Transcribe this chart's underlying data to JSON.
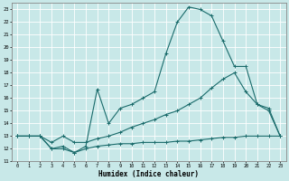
{
  "xlabel": "Humidex (Indice chaleur)",
  "xlim": [
    -0.5,
    23.5
  ],
  "ylim": [
    11,
    23.5
  ],
  "yticks": [
    11,
    12,
    13,
    14,
    15,
    16,
    17,
    18,
    19,
    20,
    21,
    22,
    23
  ],
  "xticks": [
    0,
    1,
    2,
    3,
    4,
    5,
    6,
    7,
    8,
    9,
    10,
    11,
    12,
    13,
    14,
    15,
    16,
    17,
    18,
    19,
    20,
    21,
    22,
    23
  ],
  "bg_color": "#c8e8e8",
  "line_color": "#1a6b6b",
  "grid_color": "#ffffff",
  "line1_x": [
    0,
    1,
    2,
    3,
    4,
    5,
    6,
    7,
    8,
    9,
    10,
    11,
    12,
    13,
    14,
    15,
    16,
    17,
    18,
    19,
    20,
    21,
    22,
    23
  ],
  "line1_y": [
    13.0,
    13.0,
    13.0,
    12.0,
    12.2,
    11.7,
    12.2,
    16.7,
    14.0,
    15.2,
    15.5,
    16.0,
    16.5,
    19.5,
    22.0,
    23.2,
    23.0,
    22.5,
    20.5,
    18.5,
    18.5,
    15.5,
    15.0,
    13.0
  ],
  "line2_x": [
    0,
    1,
    2,
    3,
    4,
    5,
    6,
    7,
    8,
    9,
    10,
    11,
    12,
    13,
    14,
    15,
    16,
    17,
    18,
    19,
    20,
    21,
    22,
    23
  ],
  "line2_y": [
    13.0,
    13.0,
    13.0,
    12.5,
    13.0,
    12.5,
    12.5,
    12.8,
    13.0,
    13.3,
    13.7,
    14.0,
    14.3,
    14.7,
    15.0,
    15.5,
    16.0,
    16.8,
    17.5,
    18.0,
    16.5,
    15.5,
    15.2,
    13.0
  ],
  "line3_x": [
    0,
    1,
    2,
    3,
    4,
    5,
    6,
    7,
    8,
    9,
    10,
    11,
    12,
    13,
    14,
    15,
    16,
    17,
    18,
    19,
    20,
    21,
    22,
    23
  ],
  "line3_y": [
    13.0,
    13.0,
    13.0,
    12.0,
    12.0,
    11.7,
    12.0,
    12.2,
    12.3,
    12.4,
    12.4,
    12.5,
    12.5,
    12.5,
    12.6,
    12.6,
    12.7,
    12.8,
    12.9,
    12.9,
    13.0,
    13.0,
    13.0,
    13.0
  ]
}
